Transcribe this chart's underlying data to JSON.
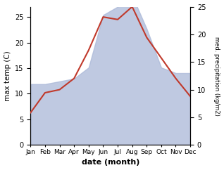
{
  "months": [
    "Jan",
    "Feb",
    "Mar",
    "Apr",
    "May",
    "Jun",
    "Jul",
    "Aug",
    "Sep",
    "Oct",
    "Nov",
    "Dec"
  ],
  "month_indices": [
    1,
    2,
    3,
    4,
    5,
    6,
    7,
    8,
    9,
    10,
    11,
    12
  ],
  "max_temp": [
    6.3,
    10.2,
    10.8,
    13.0,
    18.5,
    25.0,
    24.5,
    27.0,
    21.0,
    17.0,
    13.0,
    9.5
  ],
  "precipitation": [
    11.0,
    11.0,
    11.5,
    12.0,
    14.0,
    23.5,
    25.0,
    27.0,
    21.0,
    14.0,
    13.0,
    13.0
  ],
  "temp_color": "#c0392b",
  "precip_fill_color": "#aab8d8",
  "precip_fill_alpha": 0.75,
  "left_ylim": [
    0,
    27
  ],
  "right_ylim": [
    0,
    25
  ],
  "left_yticks": [
    0,
    5,
    10,
    15,
    20,
    25
  ],
  "right_yticks": [
    0,
    5,
    10,
    15,
    20,
    25
  ],
  "xlabel": "date (month)",
  "ylabel_left": "max temp (C)",
  "ylabel_right": "med. precipitation (kg/m2)",
  "fig_width": 3.18,
  "fig_height": 2.42,
  "dpi": 100
}
